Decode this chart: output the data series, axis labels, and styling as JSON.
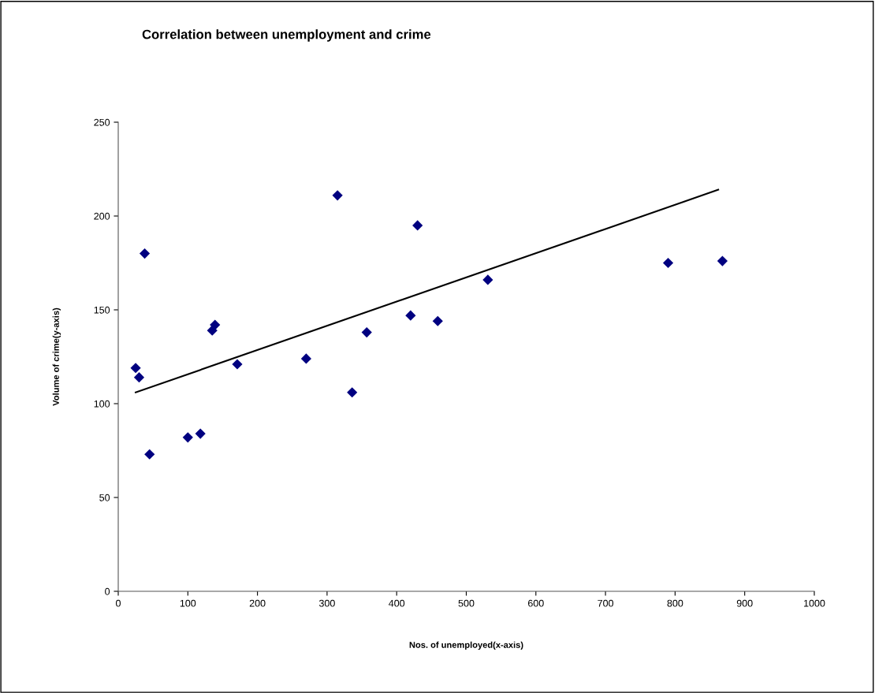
{
  "chart_data": {
    "type": "scatter",
    "title": "Correlation between unemployment and crime",
    "xlabel": "Nos. of unemployed(x-axis)",
    "ylabel": "Volume of crime(y-axis)",
    "series": [
      {
        "color": "#000080",
        "marker": "diamond",
        "x": [
          25,
          30,
          38,
          45,
          100,
          118,
          135,
          139,
          171,
          270,
          315,
          336,
          357,
          420,
          430,
          459,
          531,
          790,
          868
        ],
        "values": [
          119,
          114,
          180,
          73,
          82,
          84,
          139,
          142,
          121,
          124,
          211,
          106,
          138,
          147,
          195,
          144,
          166,
          175,
          176
        ]
      },
      {
        "type": "line",
        "color": "#000000",
        "x": [
          25,
          862
        ],
        "values": [
          106,
          214
        ]
      }
    ],
    "xlim": [
      0,
      1000
    ],
    "xticks": [
      0,
      100,
      200,
      300,
      400,
      500,
      600,
      700,
      800,
      900,
      1000
    ],
    "ylim": [
      0,
      250
    ],
    "yticks": [
      0,
      50,
      100,
      150,
      200,
      250
    ],
    "grid": false,
    "legend": false
  }
}
